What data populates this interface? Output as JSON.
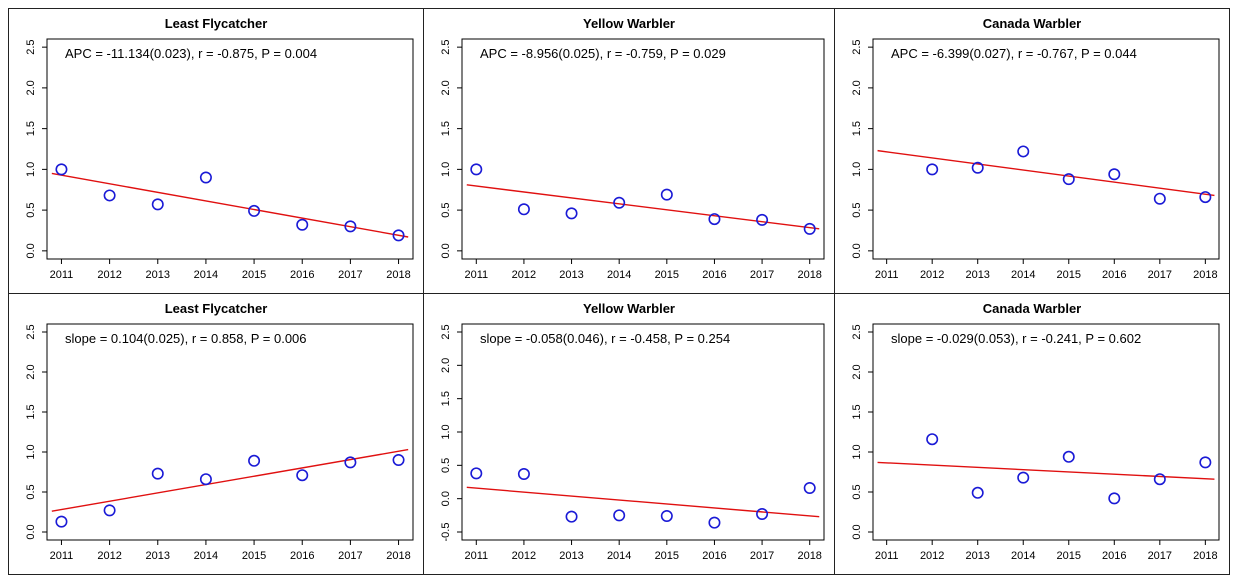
{
  "colors": {
    "points": "#1a1ad6",
    "fit_line": "#e01010",
    "axis": "#000000"
  },
  "chart_data": [
    {
      "type": "scatter",
      "title": "Least Flycatcher",
      "annotation": "APC = -11.134(0.023), r = -0.875, P = 0.004",
      "xlabel": "",
      "ylabel": "",
      "x": [
        2011,
        2012,
        2013,
        2014,
        2015,
        2016,
        2017,
        2018
      ],
      "y": [
        1.0,
        0.68,
        0.57,
        0.9,
        0.49,
        0.32,
        0.3,
        0.19
      ],
      "xlim": [
        2011,
        2018
      ],
      "ylim": [
        0,
        2.5
      ],
      "yticks": [
        "0.0",
        "0.5",
        "1.0",
        "1.5",
        "2.0",
        "2.5"
      ],
      "fit": {
        "x": [
          2010.8,
          2018.2
        ],
        "y": [
          0.95,
          0.17
        ]
      }
    },
    {
      "type": "scatter",
      "title": "Yellow Warbler",
      "annotation": "APC = -8.956(0.025), r = -0.759, P = 0.029",
      "xlabel": "",
      "ylabel": "",
      "x": [
        2011,
        2012,
        2013,
        2014,
        2015,
        2016,
        2017,
        2018
      ],
      "y": [
        1.0,
        0.51,
        0.46,
        0.59,
        0.69,
        0.39,
        0.38,
        0.27
      ],
      "xlim": [
        2011,
        2018
      ],
      "ylim": [
        0,
        2.5
      ],
      "yticks": [
        "0.0",
        "0.5",
        "1.0",
        "1.5",
        "2.0",
        "2.5"
      ],
      "fit": {
        "x": [
          2010.8,
          2018.2
        ],
        "y": [
          0.81,
          0.27
        ]
      }
    },
    {
      "type": "scatter",
      "title": "Canada Warbler",
      "annotation": "APC = -6.399(0.027), r = -0.767, P = 0.044",
      "xlabel": "",
      "ylabel": "",
      "x": [
        2012,
        2013,
        2014,
        2015,
        2016,
        2017,
        2018
      ],
      "y": [
        1.0,
        1.02,
        1.22,
        0.88,
        0.94,
        0.64,
        0.66
      ],
      "xlim": [
        2011,
        2018
      ],
      "ylim": [
        0,
        2.5
      ],
      "yticks": [
        "0.0",
        "0.5",
        "1.0",
        "1.5",
        "2.0",
        "2.5"
      ],
      "fit": {
        "x": [
          2010.8,
          2018.2
        ],
        "y": [
          1.23,
          0.68
        ]
      }
    },
    {
      "type": "scatter",
      "title": "Least Flycatcher",
      "annotation": "slope = 0.104(0.025), r = 0.858, P = 0.006",
      "xlabel": "",
      "ylabel": "",
      "x": [
        2011,
        2012,
        2013,
        2014,
        2015,
        2016,
        2017,
        2018
      ],
      "y": [
        0.13,
        0.27,
        0.73,
        0.66,
        0.89,
        0.71,
        0.87,
        0.9
      ],
      "xlim": [
        2011,
        2018
      ],
      "ylim": [
        0,
        2.5
      ],
      "yticks": [
        "0.0",
        "0.5",
        "1.0",
        "1.5",
        "2.0",
        "2.5"
      ],
      "fit": {
        "x": [
          2010.8,
          2018.2
        ],
        "y": [
          0.26,
          1.03
        ]
      }
    },
    {
      "type": "scatter",
      "title": "Yellow Warbler",
      "annotation": "slope = -0.058(0.046), r = -0.458, P = 0.254",
      "xlabel": "",
      "ylabel": "",
      "x": [
        2011,
        2012,
        2013,
        2014,
        2015,
        2016,
        2017,
        2018
      ],
      "y": [
        0.38,
        0.37,
        -0.27,
        -0.25,
        -0.26,
        -0.36,
        -0.23,
        0.16
      ],
      "xlim": [
        2011,
        2018
      ],
      "ylim": [
        -0.5,
        2.5
      ],
      "yticks": [
        "-0.5",
        "0.0",
        "0.5",
        "1.0",
        "1.5",
        "2.0",
        "2.5"
      ],
      "fit": {
        "x": [
          2010.8,
          2018.2
        ],
        "y": [
          0.17,
          -0.27
        ]
      }
    },
    {
      "type": "scatter",
      "title": "Canada Warbler",
      "annotation": "slope = -0.029(0.053), r = -0.241, P = 0.602",
      "xlabel": "",
      "ylabel": "",
      "x": [
        2012,
        2013,
        2014,
        2015,
        2016,
        2017,
        2018
      ],
      "y": [
        1.16,
        0.49,
        0.68,
        0.94,
        0.42,
        0.66,
        0.87
      ],
      "xlim": [
        2011,
        2018
      ],
      "ylim": [
        0,
        2.5
      ],
      "yticks": [
        "0.0",
        "0.5",
        "1.0",
        "1.5",
        "2.0",
        "2.5"
      ],
      "fit": {
        "x": [
          2010.8,
          2018.2
        ],
        "y": [
          0.87,
          0.66
        ]
      }
    }
  ]
}
